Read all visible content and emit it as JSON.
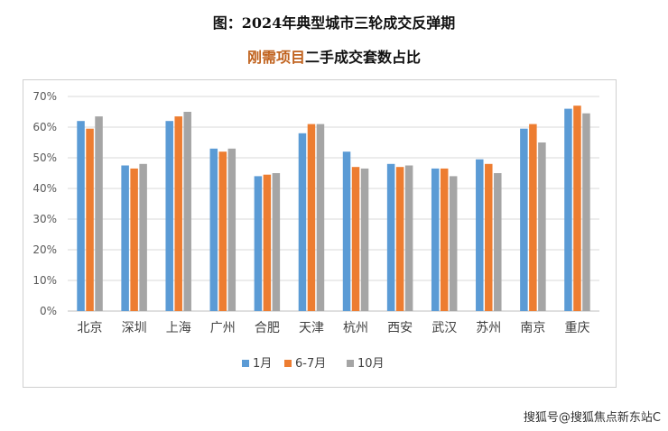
{
  "header": {
    "title": "图：2024年典型城市三轮成交反弹期",
    "subtitle_highlight": "刚需项目",
    "subtitle_rest": "二手成交套数占比"
  },
  "watermark": "搜狐号@搜狐焦点新东站C",
  "colors": {
    "series": [
      "#5b9bd5",
      "#ed7d31",
      "#a5a5a5"
    ],
    "grid": "#d9d9d9",
    "accent": "#c0611c"
  },
  "chart_data": {
    "type": "bar",
    "categories": [
      "北京",
      "深圳",
      "上海",
      "广州",
      "合肥",
      "天津",
      "杭州",
      "西安",
      "武汉",
      "苏州",
      "南京",
      "重庆"
    ],
    "series": [
      {
        "name": "1月",
        "values": [
          62,
          47.5,
          62,
          53,
          44,
          58,
          52,
          48,
          46.5,
          49.5,
          59.5,
          66
        ]
      },
      {
        "name": "6-7月",
        "values": [
          59.5,
          46.5,
          63.5,
          52,
          44.5,
          61,
          47,
          47,
          46.5,
          48,
          61,
          67
        ]
      },
      {
        "name": "10月",
        "values": [
          63.5,
          48,
          65,
          53,
          45,
          61,
          46.5,
          47.5,
          44,
          45,
          55,
          64.5
        ]
      }
    ],
    "yticks": [
      "0%",
      "10%",
      "20%",
      "30%",
      "40%",
      "50%",
      "60%",
      "70%"
    ],
    "ylim": [
      0,
      70
    ],
    "grid": true,
    "legend": "bottom"
  }
}
